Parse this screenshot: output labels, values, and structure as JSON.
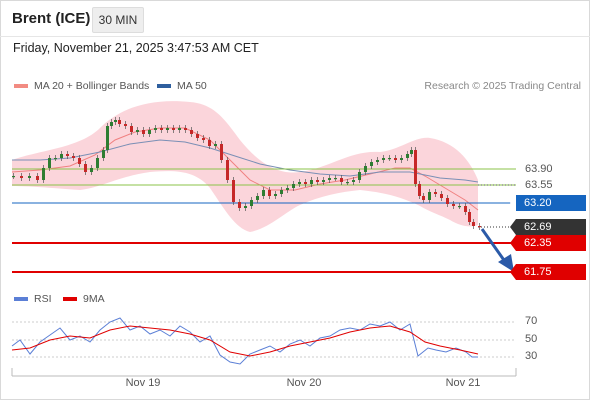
{
  "header": {
    "title": "Brent (ICE)",
    "timeframe": "30 MIN"
  },
  "datetime": "Friday, November 21, 2025 3:47:53 AM CET",
  "legend": {
    "items": [
      {
        "label": "MA 20 + Bollinger Bands",
        "color": "#f28b82"
      },
      {
        "label": "MA 50",
        "color": "#2e5f9e"
      }
    ],
    "credit": "Research © 2025 Trading Central"
  },
  "levels": {
    "r2": "63.90",
    "r1": "63.55",
    "pivot": "63.20",
    "last": "62.69",
    "s1": "62.35",
    "s2": "61.75"
  },
  "rsi_legend": {
    "items": [
      {
        "label": "RSI",
        "color": "#5b7fd6"
      },
      {
        "label": "9MA",
        "color": "#e00000"
      }
    ]
  },
  "rsi_axis": [
    "70",
    "50",
    "30"
  ],
  "xaxis": [
    "Nov 19",
    "Nov 20",
    "Nov 21"
  ],
  "colors": {
    "up": "#2e7d32",
    "down": "#c62828",
    "band": "#f9c7cf",
    "support": "#e00000",
    "pivot": "#1565c0",
    "resistance": "#8bc34a",
    "last": "#333333",
    "arrow": "#2b5aa8"
  }
}
